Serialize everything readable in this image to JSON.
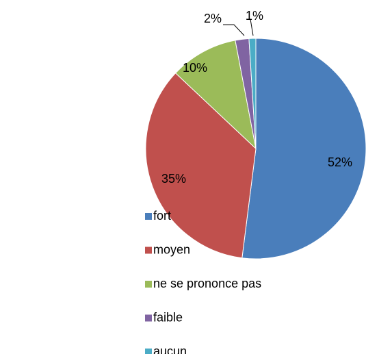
{
  "chart_data": {
    "type": "pie",
    "categories": [
      "fort",
      "moyen",
      "ne se prononce pas",
      "faible",
      "aucun"
    ],
    "values": [
      52,
      35,
      10,
      2,
      1
    ],
    "value_labels": [
      "52%",
      "35%",
      "10%",
      "2%",
      "1%"
    ],
    "colors": [
      "#4a7ebb",
      "#c0504d",
      "#9bbb59",
      "#8064a2",
      "#4bacc6"
    ],
    "legend": "left"
  }
}
